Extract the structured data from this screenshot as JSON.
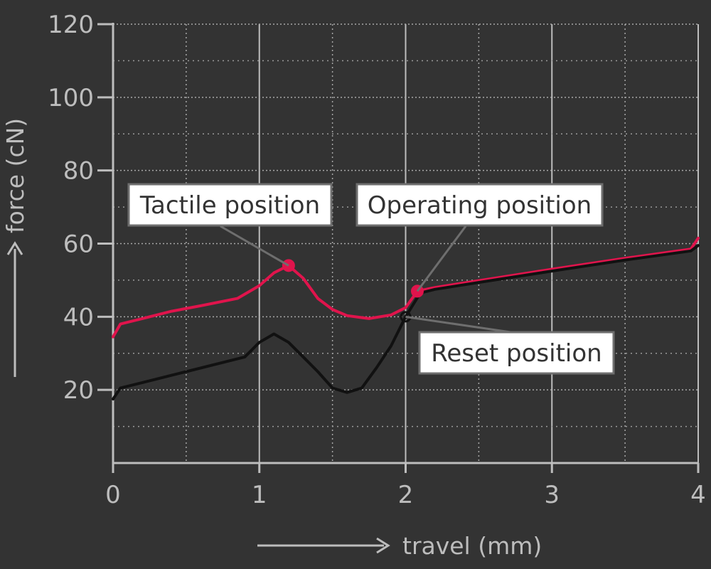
{
  "chart_data": {
    "type": "line",
    "xlabel": "travel (mm)",
    "ylabel": "force (cN)",
    "xlim": [
      0,
      4
    ],
    "ylim": [
      0,
      120
    ],
    "x_ticks": [
      "0",
      "1",
      "2",
      "3",
      "4"
    ],
    "y_ticks": [
      "20",
      "40",
      "60",
      "80",
      "100",
      "120"
    ],
    "grid": true,
    "colors": {
      "press": "#e0144c",
      "release": "#111111"
    },
    "series": [
      {
        "name": "",
        "color": "#e0144c",
        "points": [
          [
            0,
            34.5
          ],
          [
            0.05,
            38
          ],
          [
            0.2,
            39.5
          ],
          [
            0.4,
            41.5
          ],
          [
            0.6,
            43
          ],
          [
            0.85,
            45
          ],
          [
            1.0,
            48.5
          ],
          [
            1.1,
            52
          ],
          [
            1.2,
            54
          ],
          [
            1.3,
            50.5
          ],
          [
            1.4,
            45
          ],
          [
            1.5,
            42
          ],
          [
            1.6,
            40.3
          ],
          [
            1.75,
            39.5
          ],
          [
            1.9,
            40.5
          ],
          [
            2.0,
            42.5
          ],
          [
            2.08,
            47
          ],
          [
            2.2,
            48
          ],
          [
            2.6,
            50.5
          ],
          [
            3.0,
            53
          ],
          [
            3.5,
            56
          ],
          [
            3.95,
            58.5
          ],
          [
            4.0,
            61.5
          ]
        ]
      },
      {
        "name": "",
        "color": "#111111",
        "points": [
          [
            0,
            17.5
          ],
          [
            0.05,
            20.5
          ],
          [
            0.2,
            22
          ],
          [
            0.5,
            25
          ],
          [
            0.9,
            29
          ],
          [
            1.0,
            33
          ],
          [
            1.1,
            35.3
          ],
          [
            1.2,
            33
          ],
          [
            1.3,
            29
          ],
          [
            1.4,
            25
          ],
          [
            1.5,
            20.5
          ],
          [
            1.6,
            19.3
          ],
          [
            1.7,
            20.5
          ],
          [
            1.8,
            26
          ],
          [
            1.9,
            32
          ],
          [
            2.0,
            40
          ],
          [
            2.1,
            46.5
          ],
          [
            2.2,
            47.5
          ],
          [
            2.6,
            50
          ],
          [
            3.0,
            52.5
          ],
          [
            3.5,
            55.5
          ],
          [
            3.95,
            58
          ],
          [
            4.0,
            59.5
          ]
        ]
      }
    ],
    "markers": [
      {
        "label": "Tactile position",
        "x": 1.2,
        "y": 54,
        "series": 0,
        "style": "filled"
      },
      {
        "label": "Operating position",
        "x": 2.08,
        "y": 47,
        "series": 0,
        "style": "filled"
      },
      {
        "label": "Reset position",
        "x": 2.0,
        "y": 40,
        "series": 1,
        "style": "hollow"
      }
    ]
  }
}
